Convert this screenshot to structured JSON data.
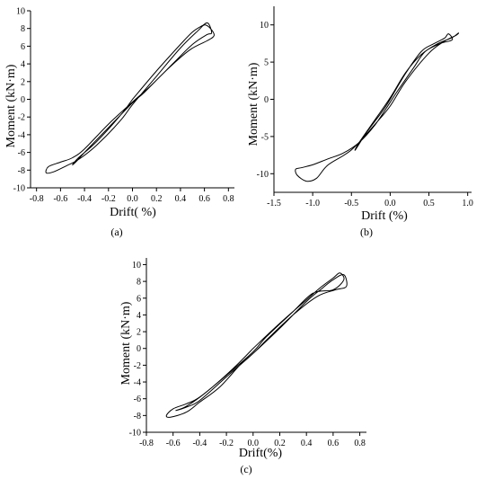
{
  "chart_data": [
    {
      "type": "line",
      "panel_label": "(a)",
      "xlabel": "Drift(  %)",
      "ylabel": "Moment (kN·m)",
      "xlim": [
        -0.85,
        0.85
      ],
      "ylim": [
        -10,
        10
      ],
      "xticks": [
        -0.8,
        -0.6,
        -0.4,
        -0.2,
        0.0,
        0.2,
        0.4,
        0.6,
        0.8
      ],
      "yticks": [
        -10,
        -8,
        -6,
        -4,
        -2,
        0,
        2,
        4,
        6,
        8,
        10
      ],
      "grid": false,
      "series": [
        {
          "x": [
            0,
            0.2,
            0.4,
            0.5,
            0.58,
            0.63,
            0.66,
            0.62,
            0.5,
            0.35,
            0.15,
            0,
            -0.2,
            -0.4,
            -0.5,
            -0.6,
            -0.7,
            -0.72,
            -0.66,
            -0.55,
            -0.45,
            -0.3,
            -0.1,
            0,
            0.2,
            0.4,
            0.55,
            0.6,
            0.65,
            0.68,
            0.62,
            0.48,
            0.3,
            0.1,
            0,
            -0.2,
            -0.4,
            -0.46,
            -0.5,
            -0.45,
            -0.3,
            -0.1,
            0
          ],
          "y": [
            0,
            3.2,
            6.2,
            7.6,
            8.3,
            8.6,
            7.5,
            7.3,
            6.2,
            4.2,
            1.5,
            -0.3,
            -2.8,
            -5.6,
            -6.6,
            -7.1,
            -7.6,
            -8.3,
            -8.2,
            -7.5,
            -6.8,
            -5.2,
            -2.4,
            -0.6,
            2.6,
            5.8,
            7.8,
            8.4,
            8.0,
            7.2,
            6.6,
            5.6,
            3.5,
            0.8,
            -0.4,
            -3.2,
            -6.0,
            -6.9,
            -7.4,
            -6.6,
            -4.8,
            -1.8,
            0
          ]
        }
      ]
    },
    {
      "type": "line",
      "panel_label": "(b)",
      "xlabel": "Drift (%)",
      "ylabel": "Moment (kN·m)",
      "xlim": [
        -1.5,
        1.05
      ],
      "ylim": [
        -12.5,
        12.5
      ],
      "xticks": [
        -1.5,
        -1.0,
        -0.5,
        0.0,
        0.5,
        1.0
      ],
      "yticks": [
        -10,
        -5,
        0,
        5,
        10
      ],
      "grid": false,
      "series": [
        {
          "x": [
            0,
            0.2,
            0.4,
            0.55,
            0.7,
            0.75,
            0.8,
            0.65,
            0.45,
            0.3,
            0.1,
            0,
            -0.2,
            -0.4,
            -0.6,
            -0.8,
            -1.0,
            -1.15,
            -1.22,
            -1.2,
            -1.08,
            -0.95,
            -0.8,
            -0.5,
            -0.2,
            0,
            0.2,
            0.5,
            0.7,
            0.85,
            0.88,
            0.8,
            0.6,
            0.4,
            0.2,
            0,
            -0.2,
            -0.4,
            -0.45,
            -0.3,
            -0.1,
            0
          ],
          "y": [
            0,
            3.5,
            6.4,
            7.4,
            8.2,
            8.8,
            8.0,
            7.5,
            6.4,
            4.2,
            1.2,
            -0.4,
            -3.5,
            -5.8,
            -7.2,
            -8.0,
            -8.8,
            -9.2,
            -9.4,
            -10.2,
            -11.0,
            -10.6,
            -8.8,
            -6.8,
            -3.4,
            -0.9,
            2.4,
            6.2,
            7.8,
            8.6,
            8.9,
            8.3,
            7.4,
            6.0,
            3.6,
            0.2,
            -2.8,
            -5.8,
            -6.8,
            -4.4,
            -1.6,
            0
          ]
        }
      ]
    },
    {
      "type": "line",
      "panel_label": "(c)",
      "xlabel": "Drift(%)",
      "ylabel": "Moment (kN·m)",
      "xlim": [
        -0.8,
        0.85
      ],
      "ylim": [
        -10,
        10.8
      ],
      "xticks": [
        -0.8,
        -0.6,
        -0.4,
        -0.2,
        0.0,
        0.2,
        0.4,
        0.6,
        0.8
      ],
      "yticks": [
        -10,
        -8,
        -6,
        -4,
        -2,
        0,
        2,
        4,
        6,
        8,
        10
      ],
      "grid": false,
      "series": [
        {
          "x": [
            0,
            0.2,
            0.4,
            0.5,
            0.6,
            0.65,
            0.68,
            0.6,
            0.45,
            0.3,
            0.1,
            0,
            -0.2,
            -0.4,
            -0.5,
            -0.6,
            -0.65,
            -0.62,
            -0.5,
            -0.4,
            -0.25,
            -0.1,
            0,
            0.2,
            0.4,
            0.52,
            0.6,
            0.68,
            0.7,
            0.62,
            0.48,
            0.3,
            0.1,
            0,
            -0.2,
            -0.4,
            -0.5,
            -0.58,
            -0.5,
            -0.35,
            -0.15,
            0
          ],
          "y": [
            0,
            3.0,
            5.8,
            7.2,
            8.4,
            9.0,
            8.2,
            7.0,
            6.6,
            4.4,
            1.4,
            -0.4,
            -3.2,
            -5.8,
            -6.6,
            -7.2,
            -8.0,
            -8.2,
            -7.6,
            -6.4,
            -4.6,
            -2.0,
            -0.6,
            2.4,
            5.6,
            7.2,
            8.2,
            8.8,
            7.4,
            7.0,
            6.2,
            4.0,
            1.0,
            -0.6,
            -3.4,
            -6.2,
            -7.0,
            -7.4,
            -6.9,
            -5.2,
            -2.4,
            0
          ]
        }
      ]
    }
  ]
}
